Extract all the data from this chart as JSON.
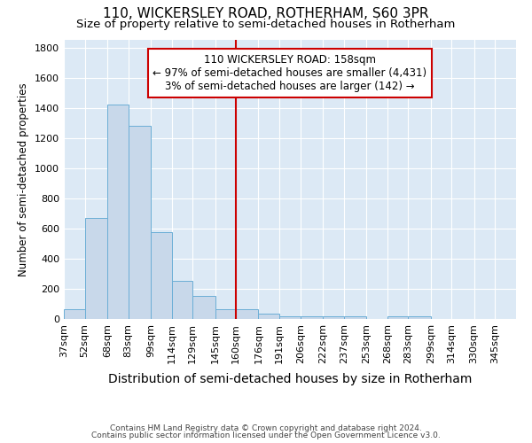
{
  "title1": "110, WICKERSLEY ROAD, ROTHERHAM, S60 3PR",
  "title2": "Size of property relative to semi-detached houses in Rotherham",
  "xlabel": "Distribution of semi-detached houses by size in Rotherham",
  "ylabel": "Number of semi-detached properties",
  "footnote1": "Contains HM Land Registry data © Crown copyright and database right 2024.",
  "footnote2": "Contains public sector information licensed under the Open Government Licence v3.0.",
  "bar_color": "#c8d8ea",
  "bar_edge_color": "#6baed6",
  "vline_x": 160,
  "vline_color": "#cc0000",
  "annotation_title": "110 WICKERSLEY ROAD: 158sqm",
  "annotation_line1": "← 97% of semi-detached houses are smaller (4,431)",
  "annotation_line2": "3% of semi-detached houses are larger (142) →",
  "annotation_box_color": "#cc0000",
  "categories": [
    "37sqm",
    "52sqm",
    "68sqm",
    "83sqm",
    "99sqm",
    "114sqm",
    "129sqm",
    "145sqm",
    "160sqm",
    "176sqm",
    "191sqm",
    "206sqm",
    "222sqm",
    "237sqm",
    "253sqm",
    "268sqm",
    "283sqm",
    "299sqm",
    "314sqm",
    "330sqm",
    "345sqm"
  ],
  "bin_edges": [
    37,
    52,
    68,
    83,
    99,
    114,
    129,
    145,
    160,
    176,
    191,
    206,
    222,
    237,
    253,
    268,
    283,
    299,
    314,
    330,
    345
  ],
  "bin_width": 15,
  "values": [
    65,
    670,
    1420,
    1280,
    575,
    255,
    155,
    65,
    65,
    35,
    20,
    20,
    15,
    15,
    0,
    20,
    15,
    0,
    0,
    0
  ],
  "ylim": [
    0,
    1850
  ],
  "yticks": [
    0,
    200,
    400,
    600,
    800,
    1000,
    1200,
    1400,
    1600,
    1800
  ],
  "background_color": "#ffffff",
  "plot_bg_color": "#dce9f5",
  "grid_color": "#ffffff",
  "title1_fontsize": 11,
  "title2_fontsize": 9.5,
  "xlabel_fontsize": 10,
  "ylabel_fontsize": 8.5,
  "tick_fontsize": 8,
  "annot_fontsize": 8.5
}
